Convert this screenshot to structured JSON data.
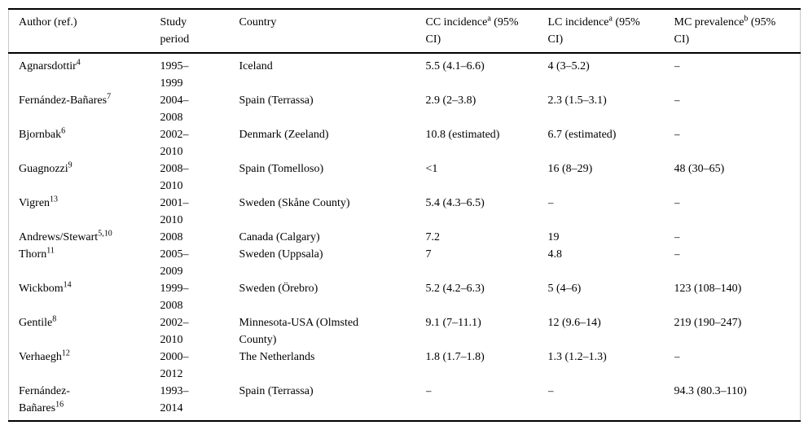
{
  "page": {
    "background_color": "#ffffff",
    "text_color": "#000000",
    "rule_color": "#000000",
    "side_rule_color": "#c9c9c9"
  },
  "table": {
    "header": {
      "columns": [
        {
          "id": "author",
          "lines": [
            {
              "text": "Author (ref.)"
            }
          ]
        },
        {
          "id": "study-period",
          "lines": [
            {
              "text": "Study"
            },
            {
              "text": "period"
            }
          ]
        },
        {
          "id": "country",
          "lines": [
            {
              "text": "Country"
            }
          ]
        },
        {
          "id": "cc-incidence",
          "lines": [
            {
              "text": "CC incidence",
              "sup": "a",
              "after": " (95%"
            },
            {
              "text": "CI)"
            }
          ]
        },
        {
          "id": "lc-incidence",
          "lines": [
            {
              "text": "LC incidence",
              "sup": "a",
              "after": " (95%"
            },
            {
              "text": "CI)"
            }
          ]
        },
        {
          "id": "mc-prevalence",
          "lines": [
            {
              "text": "MC prevalence",
              "sup": "b",
              "after": " (95%"
            },
            {
              "text": "CI)"
            }
          ]
        }
      ]
    },
    "rows": [
      {
        "author_lines": [
          "Agnarsdottir"
        ],
        "author_ref": "4",
        "period_lines": [
          "1995–",
          "1999"
        ],
        "country_lines": [
          "Iceland"
        ],
        "cc": "5.5 (4.1–6.6)",
        "lc": "4 (3–5.2)",
        "mc": "–"
      },
      {
        "author_lines": [
          "Fernández-Bañares"
        ],
        "author_ref": "7",
        "period_lines": [
          "2004–",
          "2008"
        ],
        "country_lines": [
          "Spain (Terrassa)"
        ],
        "cc": "2.9 (2–3.8)",
        "lc": "2.3 (1.5–3.1)",
        "mc": "–"
      },
      {
        "author_lines": [
          "Bjornbak"
        ],
        "author_ref": "6",
        "period_lines": [
          "2002–",
          "2010"
        ],
        "country_lines": [
          "Denmark (Zeeland)"
        ],
        "cc": "10.8 (estimated)",
        "lc": "6.7 (estimated)",
        "mc": "–"
      },
      {
        "author_lines": [
          "Guagnozzi"
        ],
        "author_ref": "9",
        "period_lines": [
          "2008–",
          "2010"
        ],
        "country_lines": [
          "Spain (Tomelloso)"
        ],
        "cc": "<1",
        "lc": "16 (8–29)",
        "mc": "48 (30–65)"
      },
      {
        "author_lines": [
          "Vigren"
        ],
        "author_ref": "13",
        "period_lines": [
          "2001–",
          "2010"
        ],
        "country_lines": [
          "Sweden (Skåne County)"
        ],
        "cc": "5.4 (4.3–6.5)",
        "lc": "–",
        "mc": "–"
      },
      {
        "author_lines": [
          "Andrews/Stewart"
        ],
        "author_ref": "5,10",
        "period_lines": [
          "2008"
        ],
        "country_lines": [
          "Canada (Calgary)"
        ],
        "cc": "7.2",
        "lc": "19",
        "mc": "–"
      },
      {
        "author_lines": [
          "Thorn"
        ],
        "author_ref": "11",
        "period_lines": [
          "2005–",
          "2009"
        ],
        "country_lines": [
          "Sweden (Uppsala)"
        ],
        "cc": "7",
        "lc": "4.8",
        "mc": "–"
      },
      {
        "author_lines": [
          "Wickbom"
        ],
        "author_ref": "14",
        "period_lines": [
          "1999–",
          "2008"
        ],
        "country_lines": [
          "Sweden (Örebro)"
        ],
        "cc": "5.2 (4.2–6.3)",
        "lc": "5 (4–6)",
        "mc": "123 (108–140)"
      },
      {
        "author_lines": [
          "Gentile"
        ],
        "author_ref": "8",
        "period_lines": [
          "2002–",
          "2010"
        ],
        "country_lines": [
          "Minnesota-USA (Olmsted",
          "County)"
        ],
        "cc": "9.1 (7–11.1)",
        "lc": "12 (9.6–14)",
        "mc": "219 (190–247)"
      },
      {
        "author_lines": [
          "Verhaegh"
        ],
        "author_ref": "12",
        "period_lines": [
          "2000–",
          "2012"
        ],
        "country_lines": [
          "The Netherlands"
        ],
        "cc": "1.8 (1.7–1.8)",
        "lc": "1.3 (1.2–1.3)",
        "mc": "–"
      },
      {
        "author_lines": [
          "Fernández-",
          "Bañares"
        ],
        "author_ref": "16",
        "period_lines": [
          "1993–",
          "2014"
        ],
        "country_lines": [
          "Spain (Terrassa)"
        ],
        "cc": "–",
        "lc": "–",
        "mc": "94.3 (80.3–110)"
      }
    ]
  }
}
